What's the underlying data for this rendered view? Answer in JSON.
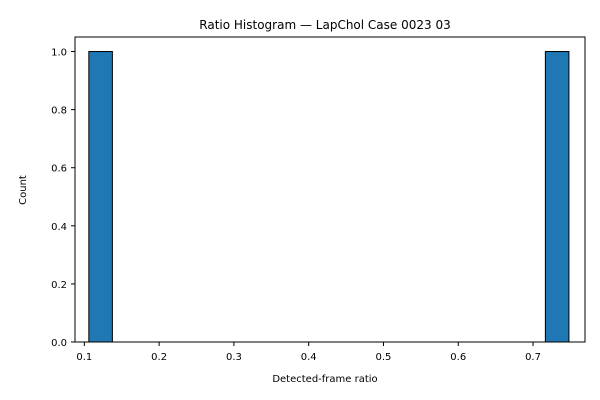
{
  "chart_data": {
    "type": "bar",
    "title": "Ratio Histogram — LapChol Case 0023 03",
    "xlabel": "Detected-frame ratio",
    "ylabel": "Count",
    "xlim": [
      0.0875,
      0.7695
    ],
    "ylim": [
      0,
      1.05
    ],
    "xticks": [
      "0.1",
      "0.2",
      "0.3",
      "0.4",
      "0.5",
      "0.6",
      "0.7"
    ],
    "yticks": [
      "0.0",
      "0.2",
      "0.4",
      "0.6",
      "0.8",
      "1.0"
    ],
    "bins": [
      {
        "x_start": 0.106,
        "x_end": 0.1375,
        "count": 1
      },
      {
        "x_start": 0.7165,
        "x_end": 0.748,
        "count": 1
      }
    ],
    "grid": false,
    "legend": "none",
    "colors": {
      "bar_fill": "#1f77b4",
      "bar_edge": "#000000",
      "axis": "#000000"
    }
  }
}
